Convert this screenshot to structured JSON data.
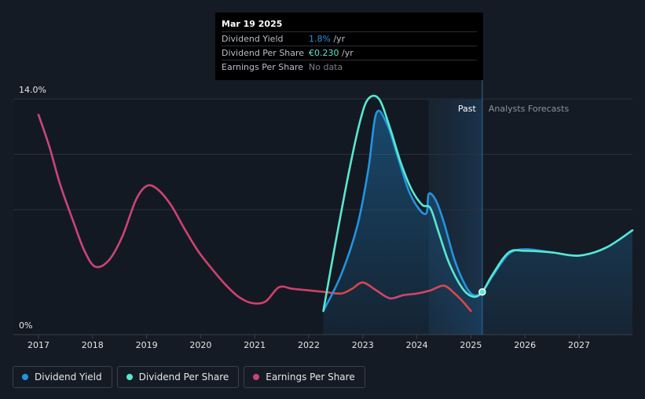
{
  "chart_data": {
    "type": "line",
    "y_axis": {
      "max_label": "14.0%",
      "min_label": "0%",
      "ylim": [
        0,
        14
      ]
    },
    "x_ticks": [
      "2017",
      "2018",
      "2019",
      "2020",
      "2021",
      "2022",
      "2023",
      "2024",
      "2025",
      "2026",
      "2027"
    ],
    "period_labels": {
      "past": "Past",
      "forecast": "Analysts Forecasts"
    },
    "series": [
      {
        "name": "Dividend Yield",
        "color": "#2394df",
        "x": [
          2022.27,
          2022.6,
          2022.9,
          2023.1,
          2023.25,
          2023.45,
          2023.65,
          2023.85,
          2024.05,
          2024.18,
          2024.22,
          2024.35,
          2024.5,
          2024.7,
          2024.9,
          2025.05,
          2025.21,
          2025.4,
          2025.7,
          2026.0,
          2026.5,
          2027.0,
          2027.5,
          2028.0
        ],
        "values": [
          0.6,
          2.9,
          6.0,
          9.5,
          13.1,
          12.4,
          10.3,
          8.2,
          7.0,
          6.8,
          8.0,
          7.6,
          6.2,
          3.8,
          2.2,
          1.6,
          1.8,
          2.8,
          4.2,
          4.5,
          4.3,
          4.1,
          4.6,
          5.7
        ]
      },
      {
        "name": "Dividend Per Share",
        "color": "#58e8d0",
        "x": [
          2022.27,
          2022.5,
          2022.75,
          2022.95,
          2023.1,
          2023.3,
          2023.5,
          2023.7,
          2023.9,
          2024.1,
          2024.25,
          2024.4,
          2024.6,
          2024.85,
          2025.05,
          2025.21,
          2025.4,
          2025.7,
          2026.0,
          2026.5,
          2027.0,
          2027.5,
          2028.0
        ],
        "values": [
          0.6,
          5.0,
          9.5,
          12.6,
          14.0,
          14.0,
          12.2,
          10.0,
          8.3,
          7.3,
          7.1,
          5.6,
          3.6,
          2.0,
          1.5,
          1.8,
          2.9,
          4.3,
          4.4,
          4.3,
          4.1,
          4.6,
          5.7
        ]
      },
      {
        "name": "Earnings Per Share",
        "color": "#c9457d",
        "x": [
          2017.0,
          2017.2,
          2017.4,
          2017.65,
          2017.85,
          2018.05,
          2018.3,
          2018.55,
          2018.8,
          2019.0,
          2019.2,
          2019.45,
          2019.7,
          2019.95,
          2020.2,
          2020.45,
          2020.7,
          2020.95,
          2021.2,
          2021.45,
          2021.7,
          2022.0,
          2022.3,
          2022.6,
          2022.8,
          2023.0,
          2023.25,
          2023.5,
          2023.75,
          2024.0,
          2024.25,
          2024.5,
          2024.7,
          2024.85,
          2025.0
        ],
        "values": [
          13.0,
          11.0,
          8.6,
          6.2,
          4.4,
          3.4,
          3.8,
          5.3,
          7.6,
          8.5,
          8.3,
          7.3,
          5.8,
          4.4,
          3.3,
          2.3,
          1.5,
          1.1,
          1.2,
          2.1,
          2.0,
          1.9,
          1.8,
          1.7,
          2.0,
          2.4,
          1.9,
          1.4,
          1.6,
          1.7,
          1.9,
          2.2,
          1.7,
          1.2,
          0.6
        ]
      }
    ],
    "highlight_point": {
      "x": 2025.21,
      "value": 1.8
    },
    "forecast_start_x": 2025.21,
    "shade_start_x": 2024.22
  },
  "tooltip": {
    "date": "Mar 19 2025",
    "rows": [
      {
        "label": "Dividend Yield",
        "value": "1.8%",
        "suffix": " /yr",
        "color": "#2394df"
      },
      {
        "label": "Dividend Per Share",
        "value": "€0.230",
        "suffix": " /yr",
        "color": "#58e8d0"
      },
      {
        "label": "Earnings Per Share",
        "value": "No data",
        "suffix": "",
        "color": "#7a8089"
      }
    ]
  },
  "legend": [
    {
      "label": "Dividend Yield",
      "color": "#2394df"
    },
    {
      "label": "Dividend Per Share",
      "color": "#58e8d0"
    },
    {
      "label": "Earnings Per Share",
      "color": "#c9457d"
    }
  ]
}
